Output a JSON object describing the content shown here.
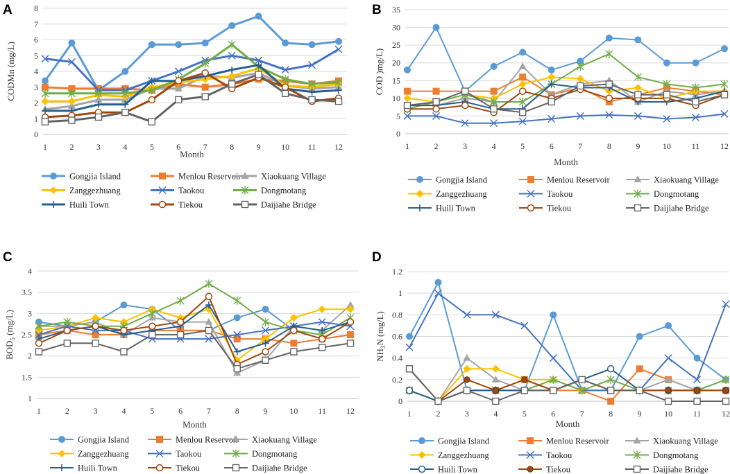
{
  "figure": {
    "panel_labels": [
      "A",
      "B",
      "C",
      "D"
    ]
  },
  "chart_data": [
    {
      "id": "A",
      "type": "line",
      "panel_label": "A",
      "xlabel": "Month",
      "ylabel": "CODMn (mg/L)",
      "ylim": [
        0,
        8
      ],
      "yticks": [
        0,
        1,
        2,
        3,
        4,
        5,
        6,
        7,
        8
      ],
      "categories": [
        1,
        2,
        3,
        4,
        5,
        6,
        7,
        8,
        9,
        10,
        11,
        12
      ],
      "legend_position": "bottom",
      "series": [
        {
          "name": "Gongjia Island",
          "color": "#5b9bd5",
          "marker": "circle",
          "values": [
            3.4,
            5.8,
            2.8,
            4.0,
            5.7,
            5.7,
            5.8,
            6.9,
            7.5,
            5.8,
            5.7,
            5.9
          ]
        },
        {
          "name": "Menlou Reservoir",
          "color": "#ed7d31",
          "marker": "square",
          "values": [
            3.0,
            2.9,
            2.9,
            2.9,
            2.8,
            3.2,
            3.0,
            3.2,
            3.5,
            3.4,
            3.2,
            3.4
          ]
        },
        {
          "name": "Xiaokuang Village",
          "color": "#a5a5a5",
          "marker": "triangle",
          "values": [
            1.6,
            1.8,
            2.2,
            2.2,
            2.9,
            2.9,
            3.7,
            3.6,
            3.9,
            3.1,
            2.9,
            3.0
          ]
        },
        {
          "name": "Zanggezhuang",
          "color": "#ffc000",
          "marker": "diamond",
          "values": [
            2.1,
            2.1,
            2.5,
            2.4,
            3.0,
            3.3,
            3.5,
            3.7,
            4.2,
            3.1,
            3.0,
            3.2
          ]
        },
        {
          "name": "Taokou",
          "color": "#4472c4",
          "marker": "x",
          "values": [
            4.8,
            4.6,
            2.8,
            2.8,
            3.4,
            4.0,
            4.7,
            5.0,
            4.7,
            4.1,
            4.4,
            5.4
          ]
        },
        {
          "name": "Dongmotang",
          "color": "#70ad47",
          "marker": "star",
          "values": [
            2.6,
            2.6,
            2.6,
            2.6,
            2.8,
            3.5,
            4.5,
            5.7,
            4.3,
            3.5,
            3.2,
            3.3
          ]
        },
        {
          "name": "Huili Town",
          "color": "#255e91",
          "marker": "plus",
          "values": [
            1.5,
            1.5,
            1.9,
            1.9,
            3.4,
            3.4,
            3.7,
            4.1,
            4.4,
            2.9,
            2.7,
            2.8
          ]
        },
        {
          "name": "Tiekou",
          "color": "#9e480e",
          "marker": "ocircle",
          "values": [
            1.1,
            1.2,
            1.4,
            1.4,
            2.2,
            3.4,
            3.9,
            2.9,
            3.6,
            3.0,
            2.1,
            2.3
          ]
        },
        {
          "name": "Daijiahe Bridge",
          "color": "#636363",
          "marker": "osquare",
          "values": [
            0.8,
            0.9,
            1.1,
            1.4,
            0.8,
            2.2,
            2.4,
            3.2,
            3.8,
            2.6,
            2.2,
            2.1
          ]
        }
      ]
    },
    {
      "id": "B",
      "type": "line",
      "panel_label": "B",
      "xlabel": "Month",
      "ylabel": "COD )mg/L)",
      "ylim": [
        0,
        35
      ],
      "yticks": [
        0,
        5,
        10,
        15,
        20,
        25,
        30,
        35
      ],
      "categories": [
        1,
        2,
        3,
        4,
        5,
        6,
        7,
        8,
        9,
        10,
        11,
        12
      ],
      "legend_position": "bottom",
      "series": [
        {
          "name": "Gongjia Island",
          "color": "#5b9bd5",
          "marker": "circle",
          "values": [
            18,
            30,
            12,
            19,
            23,
            18,
            20.5,
            27,
            26.5,
            20,
            20,
            24
          ]
        },
        {
          "name": "Menlou Reservoir",
          "color": "#ed7d31",
          "marker": "square",
          "values": [
            12,
            12,
            12,
            12,
            16,
            11,
            13,
            9,
            11,
            13,
            12,
            11
          ]
        },
        {
          "name": "Xiaokuang Village",
          "color": "#a5a5a5",
          "marker": "triangle",
          "values": [
            8,
            8,
            10,
            9,
            19,
            11,
            14,
            15,
            9,
            12,
            11,
            12
          ]
        },
        {
          "name": "Zanggezhuang",
          "color": "#ffc000",
          "marker": "diamond",
          "values": [
            10,
            9,
            11,
            10,
            14,
            16,
            15.5,
            12,
            13,
            10,
            12,
            12
          ]
        },
        {
          "name": "Taokou",
          "color": "#4472c4",
          "marker": "x",
          "values": [
            5,
            5,
            3,
            3,
            3.5,
            4.2,
            5,
            5.3,
            5,
            4.2,
            4.6,
            5.6
          ]
        },
        {
          "name": "Dongmotang",
          "color": "#70ad47",
          "marker": "star",
          "values": [
            7,
            9,
            11,
            9,
            9,
            14,
            19,
            22.5,
            16,
            14,
            13,
            14
          ]
        },
        {
          "name": "Huili Town",
          "color": "#255e91",
          "marker": "plus",
          "values": [
            8,
            8,
            9,
            7,
            7,
            14,
            13,
            13,
            9,
            9,
            10,
            12
          ]
        },
        {
          "name": "Tiekou",
          "color": "#9e480e",
          "marker": "ocircle",
          "values": [
            7,
            7,
            8,
            6,
            12,
            10,
            12.5,
            10,
            10,
            10,
            8,
            11
          ]
        },
        {
          "name": "Daijiahe Bridge",
          "color": "#636363",
          "marker": "osquare",
          "values": [
            8,
            9,
            12,
            7,
            6,
            9,
            13.5,
            14,
            11,
            11,
            9,
            11
          ]
        }
      ]
    },
    {
      "id": "C",
      "type": "line",
      "panel_label": "C",
      "xlabel": "Month",
      "ylabel": "BOD5 (mg/L)",
      "ylabel_main": "BOD",
      "ylabel_sub": "5",
      "ylabel_tail": " (mg/L)",
      "ylim": [
        1,
        4
      ],
      "yticks": [
        1,
        1.5,
        2,
        2.5,
        3,
        3.5,
        4
      ],
      "categories": [
        1,
        2,
        3,
        4,
        5,
        6,
        7,
        8,
        9,
        10,
        11,
        12
      ],
      "legend_position": "bottom",
      "series": [
        {
          "name": "Gongjia Island",
          "color": "#5b9bd5",
          "marker": "circle",
          "values": [
            2.8,
            2.7,
            2.8,
            3.2,
            3.1,
            2.6,
            2.6,
            2.9,
            3.1,
            2.6,
            2.4,
            2.5
          ]
        },
        {
          "name": "Menlou Reservoir",
          "color": "#ed7d31",
          "marker": "square",
          "values": [
            2.5,
            2.6,
            2.5,
            2.5,
            2.6,
            2.6,
            2.6,
            2.4,
            2.4,
            2.3,
            2.4,
            2.5
          ]
        },
        {
          "name": "Xiaokuang Village",
          "color": "#a5a5a5",
          "marker": "triangle",
          "values": [
            2.7,
            2.7,
            2.8,
            2.5,
            2.9,
            2.8,
            2.8,
            1.6,
            1.9,
            2.7,
            2.6,
            3.2
          ]
        },
        {
          "name": "Zanggezhuang",
          "color": "#ffc000",
          "marker": "diamond",
          "values": [
            2.6,
            2.7,
            2.9,
            2.8,
            3.1,
            2.9,
            3.1,
            1.9,
            2.4,
            2.9,
            3.1,
            3.1
          ]
        },
        {
          "name": "Taokou",
          "color": "#4472c4",
          "marker": "x",
          "values": [
            2.5,
            2.7,
            2.6,
            2.6,
            2.4,
            2.4,
            2.4,
            2.5,
            2.6,
            2.7,
            2.8,
            2.7
          ]
        },
        {
          "name": "Dongmotang",
          "color": "#70ad47",
          "marker": "star",
          "values": [
            2.7,
            2.8,
            2.7,
            2.7,
            3.0,
            3.3,
            3.7,
            3.3,
            2.8,
            2.6,
            2.5,
            2.9
          ]
        },
        {
          "name": "Huili Town",
          "color": "#255e91",
          "marker": "plus",
          "values": [
            2.4,
            2.6,
            2.7,
            2.5,
            2.6,
            2.7,
            3.2,
            2.1,
            2.3,
            2.7,
            2.6,
            2.8
          ]
        },
        {
          "name": "Tiekou",
          "color": "#9e480e",
          "marker": "ocircle",
          "values": [
            2.3,
            2.6,
            2.7,
            2.6,
            2.7,
            2.8,
            3.4,
            1.8,
            2.1,
            2.6,
            2.4,
            2.8
          ]
        },
        {
          "name": "Daijiahe Bridge",
          "color": "#636363",
          "marker": "osquare",
          "values": [
            2.1,
            2.3,
            2.3,
            2.1,
            2.5,
            2.5,
            2.6,
            1.7,
            1.9,
            2.1,
            2.2,
            2.3
          ]
        }
      ]
    },
    {
      "id": "D",
      "type": "line",
      "panel_label": "D",
      "xlabel": "Month",
      "ylabel": "NH3N (mg/L)",
      "ylabel_main": "NH",
      "ylabel_sub": "3",
      "ylabel_tail": "N (mg/L)",
      "ylim": [
        0,
        1.2
      ],
      "yticks": [
        0,
        0.2,
        0.4,
        0.6,
        0.8,
        1,
        1.2
      ],
      "categories": [
        1,
        2,
        3,
        4,
        5,
        6,
        7,
        8,
        9,
        10,
        11,
        12
      ],
      "legend_position": "bottom",
      "series": [
        {
          "name": "Gongjia Island",
          "color": "#5b9bd5",
          "marker": "circle",
          "values": [
            0.6,
            1.1,
            0.1,
            0.1,
            0.1,
            0.8,
            0.1,
            0.1,
            0.6,
            0.7,
            0.4,
            0.2
          ]
        },
        {
          "name": "Menlou Reservoir",
          "color": "#ed7d31",
          "marker": "square",
          "values": [
            0.1,
            0,
            0.1,
            0.1,
            0.2,
            0.1,
            0.1,
            0,
            0.3,
            0.2,
            0.1,
            0.1
          ]
        },
        {
          "name": "Xiaokuang Village",
          "color": "#a5a5a5",
          "marker": "triangle",
          "values": [
            0.1,
            0,
            0.4,
            0.2,
            0.1,
            0.2,
            0.1,
            0.1,
            0.1,
            0.2,
            0.1,
            0.2
          ]
        },
        {
          "name": "Zanggezhuang",
          "color": "#ffc000",
          "marker": "diamond",
          "values": [
            0.1,
            0,
            0.3,
            0.3,
            0.2,
            0.2,
            0.1,
            0.1,
            0.1,
            0.1,
            0.1,
            0.1
          ]
        },
        {
          "name": "Taokou",
          "color": "#4472c4",
          "marker": "x",
          "values": [
            0.5,
            1.0,
            0.8,
            0.8,
            0.7,
            0.4,
            0.1,
            0.1,
            0.1,
            0.4,
            0.2,
            0.9
          ]
        },
        {
          "name": "Dongmotang",
          "color": "#70ad47",
          "marker": "star",
          "values": [
            0.1,
            0,
            0.1,
            0.1,
            0.1,
            0.2,
            0.1,
            0.2,
            0.1,
            0.1,
            0.1,
            0.2
          ]
        },
        {
          "name": "Huili Town",
          "color": "#255e91",
          "marker": "ocircle",
          "values": [
            0.1,
            0,
            0.1,
            0.1,
            0.1,
            0.1,
            0.2,
            0.3,
            0.1,
            0.1,
            0.1,
            0.1
          ]
        },
        {
          "name": "Tiekou",
          "color": "#9e480e",
          "marker": "dot",
          "values": [
            0.3,
            0,
            0.2,
            0.1,
            0.2,
            0.1,
            0.2,
            0.1,
            0.1,
            0.1,
            0.1,
            0.1
          ]
        },
        {
          "name": "Daijiahe Bridge",
          "color": "#636363",
          "marker": "osquare",
          "values": [
            0.3,
            0,
            0.1,
            0,
            0.1,
            0.1,
            0.2,
            0.1,
            0.1,
            0,
            0,
            0
          ]
        }
      ]
    }
  ]
}
